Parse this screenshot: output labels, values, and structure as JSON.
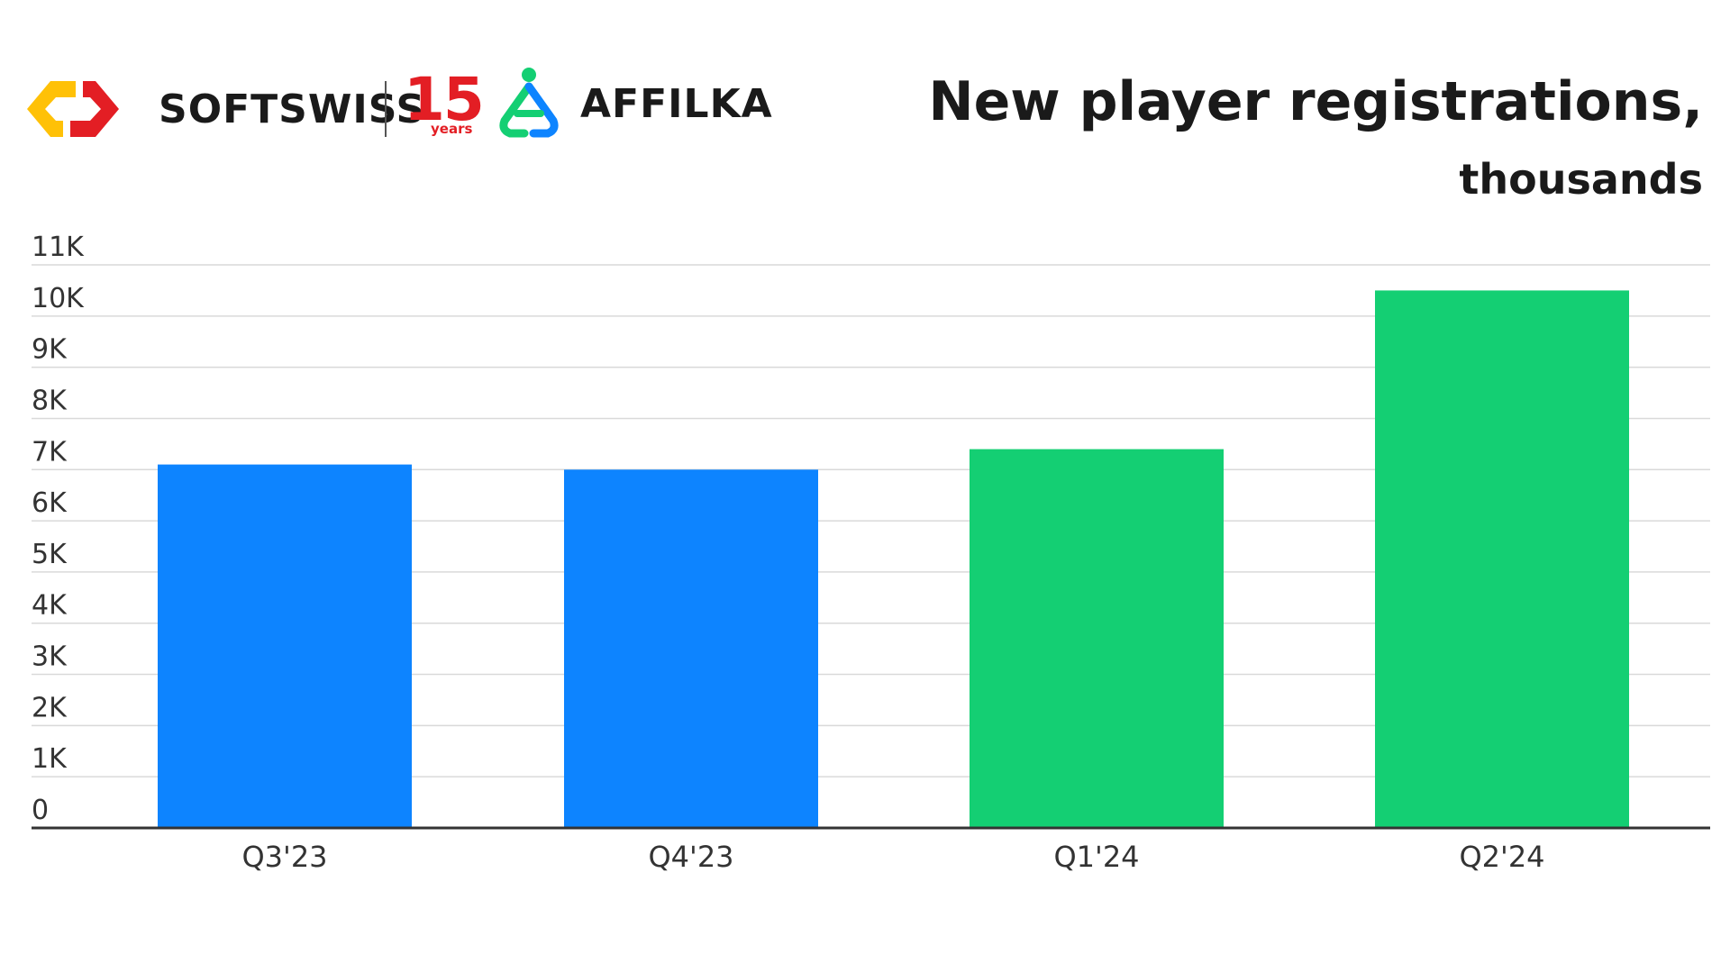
{
  "header": {
    "softswiss_name": "SOFTSWISS",
    "anniversary_number": "15",
    "anniversary_text": "years",
    "affilka_name": "AFFILKA",
    "title": "New player registrations,",
    "subtitle": "thousands"
  },
  "icons": {
    "softswiss_logo": "softswiss-logo-icon",
    "affilka_logo": "affilka-logo-icon"
  },
  "colors": {
    "blue": "#0d84ff",
    "green": "#14cf73",
    "softswiss_yellow": "#ffc107",
    "softswiss_red": "#e31e24",
    "grid": "#d9d9d9",
    "axis": "#333333"
  },
  "chart_data": {
    "type": "bar",
    "categories": [
      "Q3'23",
      "Q4'23",
      "Q1'24",
      "Q2'24"
    ],
    "values": [
      7.1,
      7.0,
      7.4,
      10.5
    ],
    "bar_colors": [
      "#0d84ff",
      "#0d84ff",
      "#14cf73",
      "#14cf73"
    ],
    "yticks": [
      0,
      1,
      2,
      3,
      4,
      5,
      6,
      7,
      8,
      9,
      10,
      11
    ],
    "ytick_labels": [
      "0",
      "1K",
      "2K",
      "3K",
      "4K",
      "5K",
      "6K",
      "7K",
      "8K",
      "9K",
      "10K",
      "11K"
    ],
    "ylim": [
      0,
      11
    ],
    "grid": true,
    "title": "New player registrations,",
    "subtitle": "thousands"
  }
}
